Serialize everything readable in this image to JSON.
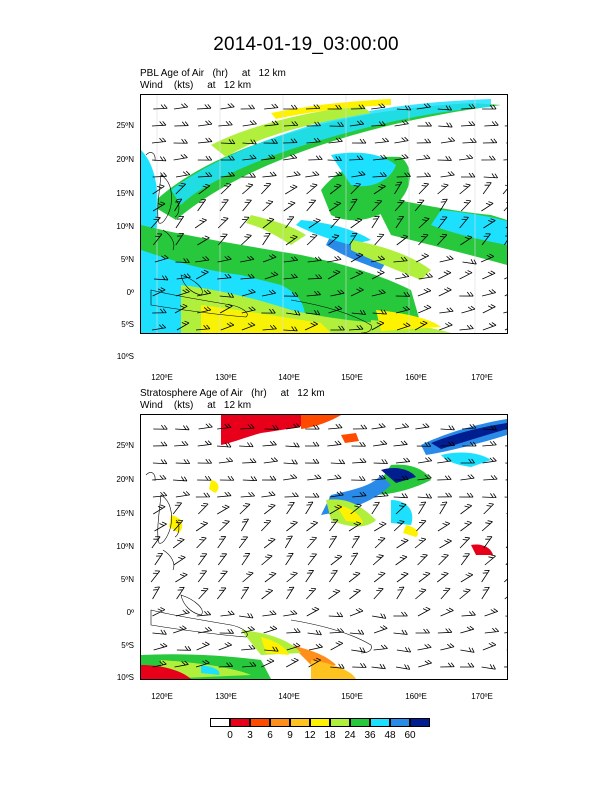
{
  "title": "2014-01-19_03:00:00",
  "panels": [
    {
      "label_line1": "PBL Age of Air   (hr)     at   12 km",
      "label_line2": "Wind    (kts)     at   12 km"
    },
    {
      "label_line1": "Stratosphere Age of Air   (hr)     at   12 km",
      "label_line2": "Wind    (kts)     at   12 km"
    }
  ],
  "lat_labels": [
    "25ºN",
    "20ºN",
    "15ºN",
    "10ºN",
    "5ºN",
    "0º",
    "5ºS",
    "10ºS"
  ],
  "lon_labels": [
    "120ºE",
    "130ºE",
    "140ºE",
    "150ºE",
    "160ºE",
    "170ºE"
  ],
  "colorbar": {
    "labels": [
      "0",
      "3",
      "6",
      "9",
      "12",
      "18",
      "24",
      "36",
      "48",
      "60"
    ],
    "colors": [
      "#ffffff",
      "#e8001a",
      "#ff4a00",
      "#ff8f1a",
      "#ffc21f",
      "#fff200",
      "#b0f03c",
      "#28c83c",
      "#1de0ff",
      "#2a8ae8",
      "#001e90"
    ]
  }
}
